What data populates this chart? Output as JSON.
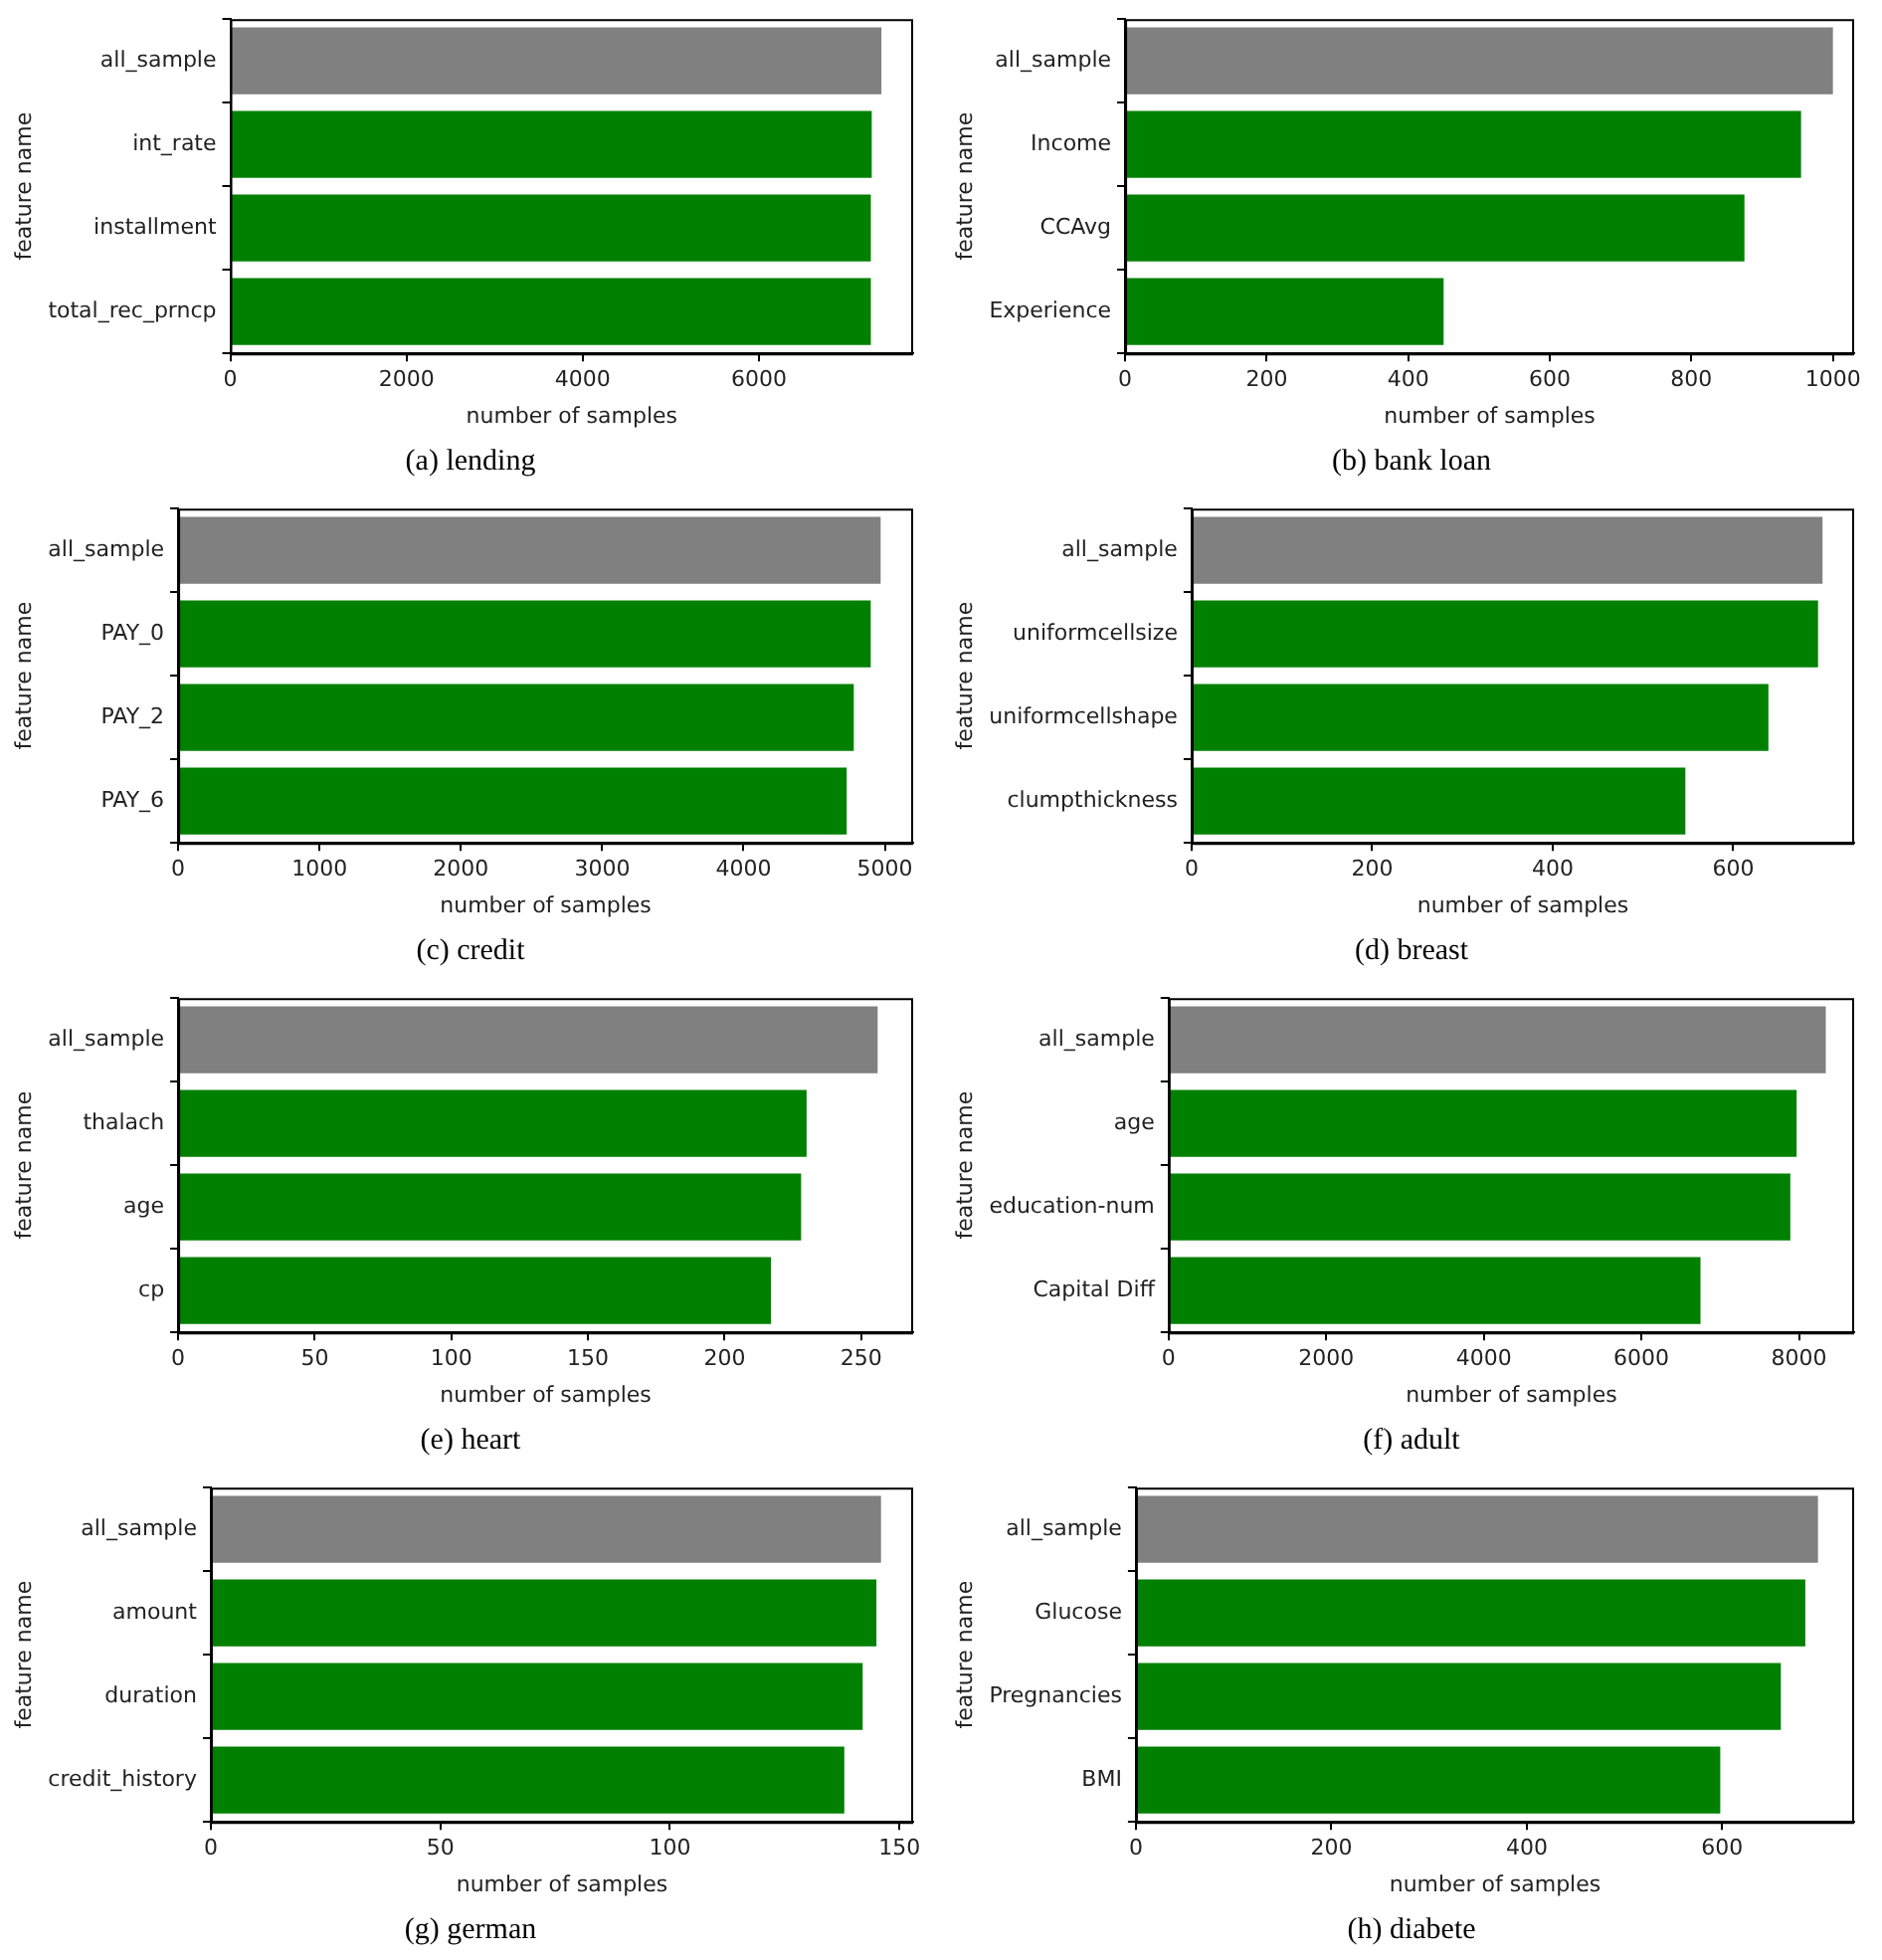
{
  "chart_data": [
    {
      "type": "bar",
      "orientation": "horizontal",
      "title": "(a) lending",
      "xlabel": "number of samples",
      "ylabel": "feature name",
      "categories": [
        "all_sample",
        "int_rate",
        "installment",
        "total_rec_prncp"
      ],
      "values": [
        7390,
        7280,
        7270,
        7270
      ],
      "colors": [
        "#808080",
        "#008000",
        "#008000",
        "#008000"
      ],
      "xlim": [
        0,
        7750
      ],
      "xticks": [
        0,
        2000,
        4000,
        6000
      ]
    },
    {
      "type": "bar",
      "orientation": "horizontal",
      "title": "(b) bank loan",
      "xlabel": "number of samples",
      "ylabel": "feature name",
      "categories": [
        "all_sample",
        "Income",
        "CCAvg",
        "Experience"
      ],
      "values": [
        1000,
        955,
        875,
        450
      ],
      "colors": [
        "#808080",
        "#008000",
        "#008000",
        "#008000"
      ],
      "xlim": [
        0,
        1030
      ],
      "xticks": [
        0,
        200,
        400,
        600,
        800,
        1000
      ]
    },
    {
      "type": "bar",
      "orientation": "horizontal",
      "title": "(c) credit",
      "xlabel": "number of samples",
      "ylabel": "feature name",
      "categories": [
        "all_sample",
        "PAY_0",
        "PAY_2",
        "PAY_6"
      ],
      "values": [
        4970,
        4900,
        4780,
        4730
      ],
      "colors": [
        "#808080",
        "#008000",
        "#008000",
        "#008000"
      ],
      "xlim": [
        0,
        5200
      ],
      "xticks": [
        0,
        1000,
        2000,
        3000,
        4000,
        5000
      ]
    },
    {
      "type": "bar",
      "orientation": "horizontal",
      "title": "(d) breast",
      "xlabel": "number of samples",
      "ylabel": "feature name",
      "categories": [
        "all_sample",
        "uniformcellsize",
        "uniformcellshape",
        "clumpthickness"
      ],
      "values": [
        699,
        694,
        639,
        547
      ],
      "colors": [
        "#808080",
        "#008000",
        "#008000",
        "#008000"
      ],
      "xlim": [
        0,
        734
      ],
      "xticks": [
        0,
        200,
        400,
        600
      ]
    },
    {
      "type": "bar",
      "orientation": "horizontal",
      "title": "(e) heart",
      "xlabel": "number of samples",
      "ylabel": "feature name",
      "categories": [
        "all_sample",
        "thalach",
        "age",
        "cp"
      ],
      "values": [
        256,
        230,
        228,
        217
      ],
      "colors": [
        "#808080",
        "#008000",
        "#008000",
        "#008000"
      ],
      "xlim": [
        0,
        269
      ],
      "xticks": [
        0,
        50,
        100,
        150,
        200,
        250
      ]
    },
    {
      "type": "bar",
      "orientation": "horizontal",
      "title": "(f) adult",
      "xlabel": "number of samples",
      "ylabel": "feature name",
      "categories": [
        "all_sample",
        "age",
        "education-num",
        "Capital Diff"
      ],
      "values": [
        8340,
        7970,
        7890,
        6750
      ],
      "colors": [
        "#808080",
        "#008000",
        "#008000",
        "#008000"
      ],
      "xlim": [
        0,
        8700
      ],
      "xticks": [
        0,
        2000,
        4000,
        6000,
        8000
      ]
    },
    {
      "type": "bar",
      "orientation": "horizontal",
      "title": "(g) german",
      "xlabel": "number of samples",
      "ylabel": "feature name",
      "categories": [
        "all_sample",
        "amount",
        "duration",
        "credit_history"
      ],
      "values": [
        146,
        145,
        142,
        138
      ],
      "colors": [
        "#808080",
        "#008000",
        "#008000",
        "#008000"
      ],
      "xlim": [
        0,
        153
      ],
      "xticks": [
        0,
        50,
        100,
        150
      ]
    },
    {
      "type": "bar",
      "orientation": "horizontal",
      "title": "(h) diabete",
      "xlabel": "number of samples",
      "ylabel": "feature name",
      "categories": [
        "all_sample",
        "Glucose",
        "Pregnancies",
        "BMI"
      ],
      "values": [
        698,
        685,
        660,
        598
      ],
      "colors": [
        "#808080",
        "#008000",
        "#008000",
        "#008000"
      ],
      "xlim": [
        0,
        735
      ],
      "xticks": [
        0,
        200,
        400,
        600
      ]
    }
  ]
}
